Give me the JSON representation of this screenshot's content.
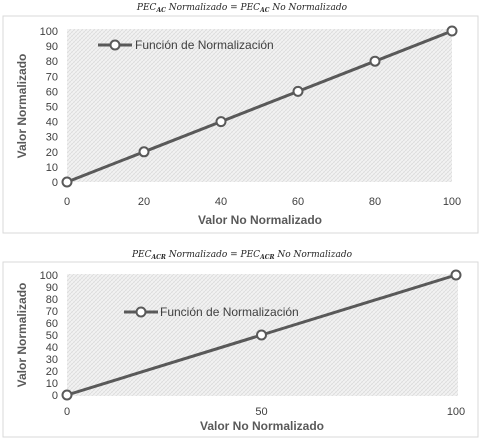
{
  "chart_data": [
    {
      "type": "line",
      "title_parts": {
        "pre": "PEC",
        "sub": "AC",
        "mid": " Normalizado = PEC",
        "sub2": "AC",
        "post": " No Normalizado"
      },
      "xlabel": "Valor No Normalizado",
      "ylabel": "Valor Normalizado",
      "xlim": [
        0,
        100
      ],
      "ylim": [
        0,
        100
      ],
      "xticks": [
        "0",
        "20",
        "40",
        "60",
        "80",
        "100"
      ],
      "yticks": [
        "0",
        "10",
        "20",
        "30",
        "40",
        "50",
        "60",
        "70",
        "80",
        "90",
        "100"
      ],
      "legend_position": "top-left",
      "grid": false,
      "series": [
        {
          "name": "Función de Normalización",
          "color": "#595959",
          "x": [
            0,
            20,
            40,
            60,
            80,
            100
          ],
          "y": [
            0,
            20,
            40,
            60,
            80,
            100
          ]
        }
      ]
    },
    {
      "type": "line",
      "title_parts": {
        "pre": "PEC",
        "sub": "ACR",
        "mid": " Normalizado = PEC",
        "sub2": "ACR",
        "post": " No Normalizado"
      },
      "xlabel": "Valor No Normalizado",
      "ylabel": "Valor Normalizado",
      "xlim": [
        0,
        100
      ],
      "ylim": [
        0,
        100
      ],
      "xticks": [
        "0",
        "50",
        "100"
      ],
      "yticks": [
        "0",
        "10",
        "20",
        "30",
        "40",
        "50",
        "60",
        "70",
        "80",
        "90",
        "100"
      ],
      "legend_position": "top-left",
      "grid": false,
      "series": [
        {
          "name": "Función de Normalización",
          "color": "#595959",
          "x": [
            0,
            50,
            100
          ],
          "y": [
            0,
            50,
            100
          ]
        }
      ]
    }
  ]
}
